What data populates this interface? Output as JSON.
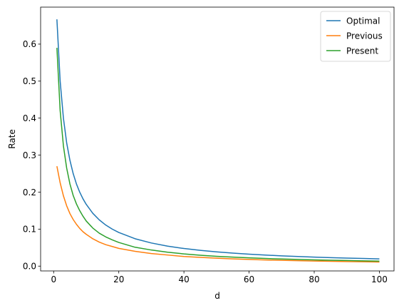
{
  "chart_data": {
    "type": "line",
    "title": "",
    "xlabel": "d",
    "ylabel": "Rate",
    "xlim": [
      -4,
      104.5
    ],
    "ylim": [
      -0.013,
      0.7
    ],
    "xticks": [
      0,
      20,
      40,
      60,
      80,
      100
    ],
    "yticks": [
      0.0,
      0.1,
      0.2,
      0.3,
      0.4,
      0.5,
      0.6
    ],
    "xtick_labels": [
      "0",
      "20",
      "40",
      "60",
      "80",
      "100"
    ],
    "ytick_labels": [
      "0.0",
      "0.1",
      "0.2",
      "0.3",
      "0.4",
      "0.5",
      "0.6"
    ],
    "grid": false,
    "legend": "top-right",
    "x": [
      1,
      2,
      3,
      4,
      5,
      6,
      7,
      8,
      9,
      10,
      12,
      14,
      16,
      18,
      20,
      25,
      30,
      35,
      40,
      45,
      50,
      55,
      60,
      65,
      70,
      75,
      80,
      85,
      90,
      95,
      100
    ],
    "series": [
      {
        "name": "Optimal",
        "color": "#1f77b4",
        "values": [
          0.667,
          0.5,
          0.4,
          0.333,
          0.286,
          0.25,
          0.222,
          0.2,
          0.182,
          0.167,
          0.143,
          0.125,
          0.111,
          0.1,
          0.091,
          0.074,
          0.0625,
          0.054,
          0.0476,
          0.0426,
          0.0385,
          0.0351,
          0.0323,
          0.0299,
          0.0278,
          0.026,
          0.0244,
          0.023,
          0.0217,
          0.0206,
          0.0196
        ]
      },
      {
        "name": "Previous",
        "color": "#ff7f0e",
        "values": [
          0.27,
          0.225,
          0.19,
          0.163,
          0.142,
          0.126,
          0.113,
          0.102,
          0.093,
          0.086,
          0.074,
          0.065,
          0.058,
          0.053,
          0.048,
          0.04,
          0.034,
          0.03,
          0.026,
          0.0236,
          0.0214,
          0.0196,
          0.018,
          0.0167,
          0.0156,
          0.0146,
          0.0138,
          0.013,
          0.0123,
          0.0117,
          0.0112
        ]
      },
      {
        "name": "Present",
        "color": "#2ca02c",
        "values": [
          0.59,
          0.42,
          0.325,
          0.265,
          0.222,
          0.191,
          0.168,
          0.15,
          0.135,
          0.122,
          0.103,
          0.089,
          0.079,
          0.071,
          0.064,
          0.051,
          0.0435,
          0.0375,
          0.033,
          0.0295,
          0.0266,
          0.0243,
          0.0223,
          0.0206,
          0.0192,
          0.018,
          0.0169,
          0.0159,
          0.0151,
          0.0143,
          0.0136
        ]
      }
    ]
  }
}
